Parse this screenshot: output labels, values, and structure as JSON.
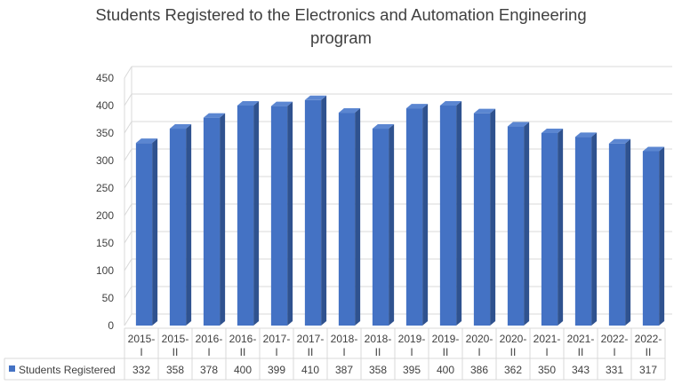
{
  "chart_data": {
    "type": "bar",
    "title": "Students Registered to the Electronics and Automation Engineering program",
    "title_lines": [
      "Students Registered to the Electronics and Automation Engineering",
      "program"
    ],
    "categories": [
      [
        "2015-",
        "I"
      ],
      [
        "2015-",
        "II"
      ],
      [
        "2016-",
        "I"
      ],
      [
        "2016-",
        "II"
      ],
      [
        "2017-",
        "I"
      ],
      [
        "2017-",
        "II"
      ],
      [
        "2018-",
        "I"
      ],
      [
        "2018-",
        "II"
      ],
      [
        "2019-",
        "I"
      ],
      [
        "2019-",
        "II"
      ],
      [
        "2020-",
        "I"
      ],
      [
        "2020-",
        "II"
      ],
      [
        "2021-",
        "I"
      ],
      [
        "2021-",
        "II"
      ],
      [
        "2022-",
        "I"
      ],
      [
        "2022-",
        "II"
      ]
    ],
    "series": [
      {
        "name": "Students Registered",
        "values": [
          332,
          358,
          378,
          400,
          399,
          410,
          387,
          358,
          395,
          400,
          386,
          362,
          350,
          343,
          331,
          317
        ]
      }
    ],
    "yticks": [
      0,
      50,
      100,
      150,
      200,
      250,
      300,
      350,
      400,
      450
    ],
    "ylim": [
      0,
      450
    ],
    "xlabel": "",
    "ylabel": "",
    "grid": true,
    "legend": "data-table-left",
    "bar_style": "3d-column",
    "colors": {
      "bar_front": "#4472C4",
      "bar_side": "#2F528F",
      "bar_top": "#5B86D1",
      "grid": "#D9D9D9",
      "text": "#404040"
    }
  }
}
